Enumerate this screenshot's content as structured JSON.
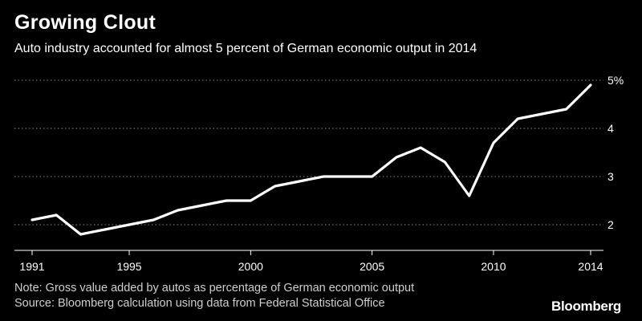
{
  "header": {
    "title": "Growing Clout",
    "subtitle": "Auto industry accounted for almost 5 percent of German economic output in 2014"
  },
  "footer": {
    "note": "Note: Gross value added by autos as percentage of German economic output",
    "source": "Source: Bloomberg calculation using data from Federal Statistical Office",
    "brand": "Bloomberg"
  },
  "colors": {
    "background": "#000000",
    "line": "#ffffff",
    "grid": "#8a8a8a"
  },
  "chart_data": {
    "type": "line",
    "title": "Growing Clout",
    "subtitle": "Auto industry accounted for almost 5 percent of German economic output in 2014",
    "xlabel": "",
    "ylabel": "",
    "x": [
      1991,
      1992,
      1993,
      1994,
      1995,
      1996,
      1997,
      1998,
      1999,
      2000,
      2001,
      2002,
      2003,
      2004,
      2005,
      2006,
      2007,
      2008,
      2009,
      2010,
      2011,
      2012,
      2013,
      2014
    ],
    "series": [
      {
        "values": [
          2.1,
          2.2,
          1.8,
          1.9,
          2.0,
          2.1,
          2.3,
          2.4,
          2.5,
          2.5,
          2.8,
          2.9,
          3.0,
          3.0,
          3.0,
          3.4,
          3.6,
          3.3,
          2.6,
          3.7,
          4.2,
          4.3,
          4.4,
          4.9
        ]
      }
    ],
    "x_ticks": [
      1991,
      1995,
      2000,
      2005,
      2010,
      2014
    ],
    "y_ticks": [
      {
        "value": 2,
        "label": "2"
      },
      {
        "value": 3,
        "label": "3"
      },
      {
        "value": 4,
        "label": "4"
      },
      {
        "value": 5,
        "label": "5%"
      }
    ],
    "xlim": [
      1991,
      2014
    ],
    "ylim": [
      1.5,
      5.0
    ],
    "grid": "horizontal dotted",
    "legend": "none"
  }
}
